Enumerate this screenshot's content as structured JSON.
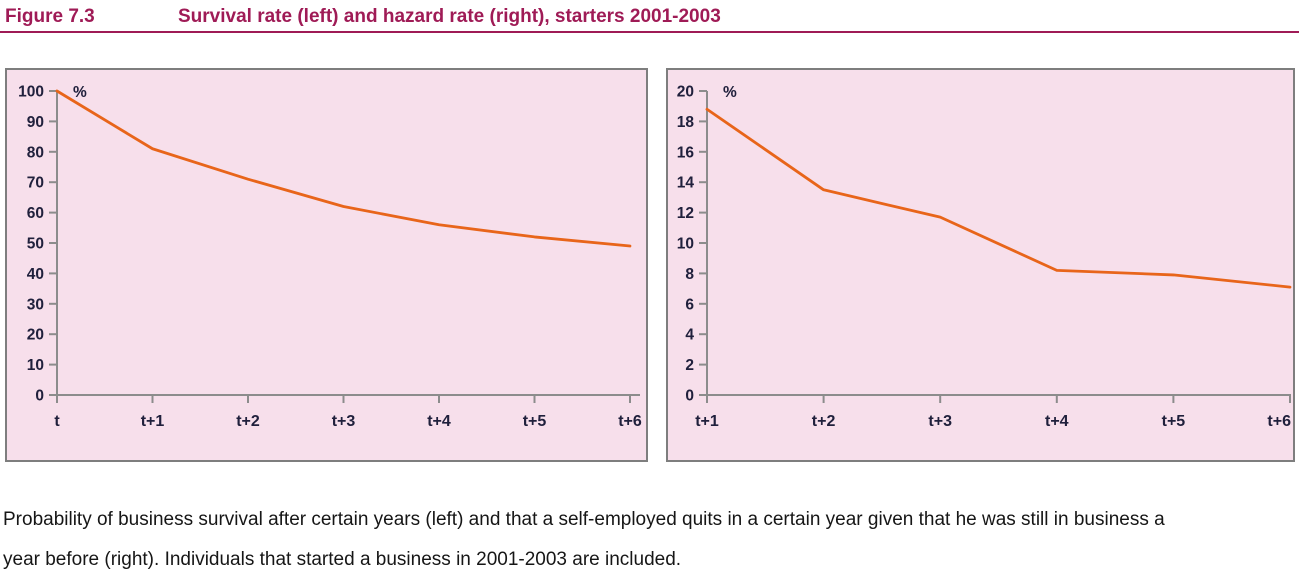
{
  "header": {
    "figure_label": "Figure 7.3",
    "title": "Survival rate (left) and hazard rate (right), starters 2001-2003"
  },
  "caption": {
    "lines": [
      "Probability of business survival after certain years (left) and that a self-employed quits in a certain year given that he was still in business a",
      "year before (right). Individuals that started a business in 2001-2003 are included."
    ]
  },
  "colors": {
    "title_maroon": "#9f1b56",
    "line_orange": "#e8651a",
    "panel_pink": "#f7dfeb",
    "panel_border": "#7e7e7e",
    "axis_gray": "#8c8c8c",
    "tick_text": "#20203c"
  },
  "chart_data": [
    {
      "type": "line",
      "name": "Survival rate, starters 2001-2003",
      "position": "left",
      "ylabel": "%",
      "ylim": [
        0,
        100
      ],
      "ytick_step": 10,
      "categories": [
        "t",
        "t+1",
        "t+2",
        "t+3",
        "t+4",
        "t+5",
        "t+6"
      ],
      "values": [
        100,
        81,
        71,
        62,
        56,
        52,
        49
      ],
      "grid": false,
      "legend": "none"
    },
    {
      "type": "line",
      "name": "Hazard rate, starters 2001-2003",
      "position": "right",
      "ylabel": "%",
      "ylim": [
        0,
        20
      ],
      "ytick_step": 2,
      "categories": [
        "t+1",
        "t+2",
        "t+3",
        "t+4",
        "t+5",
        "t+6"
      ],
      "values": [
        18.8,
        13.5,
        11.7,
        8.2,
        7.9,
        7.1
      ],
      "grid": false,
      "legend": "none"
    }
  ]
}
